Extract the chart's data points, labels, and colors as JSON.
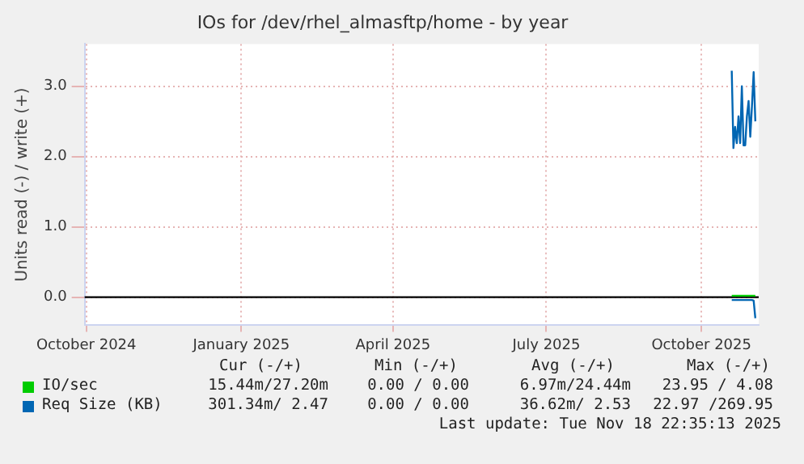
{
  "chart_data": {
    "type": "line",
    "title": "IOs for /dev/rhel_almasftp/home - by year",
    "ylabel": "Units read (-) / write (+)",
    "x": [
      "2025-10-19",
      "2025-10-20",
      "2025-10-21",
      "2025-10-22",
      "2025-10-23",
      "2025-10-24",
      "2025-10-25",
      "2025-10-26",
      "2025-10-27",
      "2025-10-28",
      "2025-10-29",
      "2025-10-30",
      "2025-10-31",
      "2025-11-01",
      "2025-11-02"
    ],
    "series": [
      {
        "name": "IO/sec",
        "color": "#00cc00",
        "values": [
          0.02,
          0.02,
          0.02,
          0.02,
          0.02,
          0.02,
          0.02,
          0.02,
          0.02,
          0.02,
          0.02,
          0.02,
          0.02,
          0.02,
          0.02
        ]
      },
      {
        "name": "Req Size (KB)",
        "color": "#0066b3",
        "values": [
          3.22,
          2.12,
          2.42,
          2.19,
          2.57,
          2.19,
          3.0,
          2.16,
          2.16,
          2.57,
          2.79,
          2.28,
          2.72,
          3.2,
          2.5
        ]
      },
      {
        "color": "#0066b3",
        "values": [
          -0.04,
          -0.04,
          -0.04,
          -0.04,
          -0.04,
          -0.04,
          -0.04,
          -0.04,
          -0.04,
          -0.04,
          -0.04,
          -0.04,
          -0.04,
          -0.05,
          -0.3
        ]
      }
    ],
    "xlim": [
      "2024-09-30",
      "2025-11-04"
    ],
    "xticks": [
      {
        "value": "2024-10-01",
        "label": "October 2024"
      },
      {
        "value": "2025-01-01",
        "label": "January 2025"
      },
      {
        "value": "2025-04-01",
        "label": "April 2025"
      },
      {
        "value": "2025-07-01",
        "label": "July 2025"
      },
      {
        "value": "2025-10-01",
        "label": "October 2025"
      }
    ],
    "ylim": [
      -0.4,
      3.6
    ],
    "yticks": [
      {
        "value": 0,
        "label": "0.0"
      },
      {
        "value": 1,
        "label": "1.0"
      },
      {
        "value": 2,
        "label": "2.0"
      },
      {
        "value": 3,
        "label": "3.0"
      }
    ],
    "ref_lines": [
      {
        "axis": "y",
        "value": 0,
        "color": "#000000"
      }
    ],
    "grid": true,
    "legend": "bottom",
    "marker": "none",
    "line_style": "solid",
    "annotations": [
      "Cur (-/+)",
      "Min (-/+)",
      "Avg (-/+)",
      "Max (-/+)",
      "15.44m/27.20m",
      "0.00 / 0.00",
      "6.97m/24.44m",
      "23.95 / 4.08",
      "301.34m/ 2.47",
      "0.00 / 0.00",
      "36.62m/ 2.53",
      "22.97 /269.95",
      "Last update: Tue Nov 18 22:35:13 2025"
    ]
  }
}
